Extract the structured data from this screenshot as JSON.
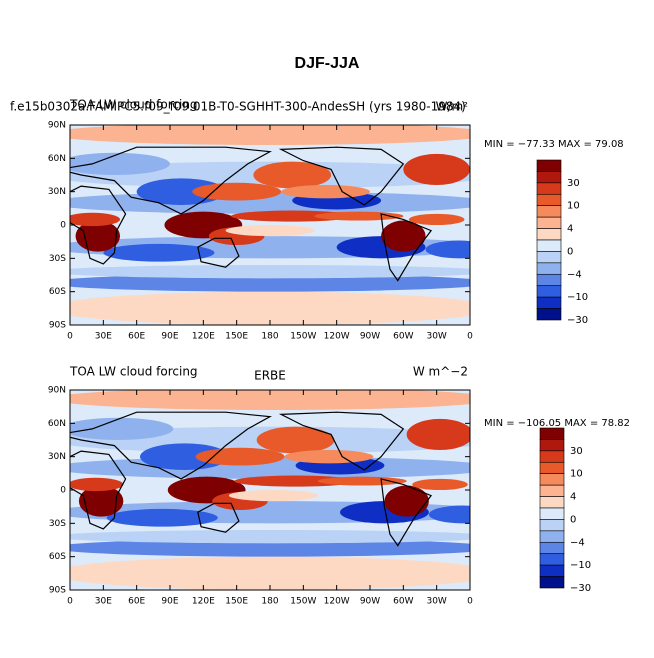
{
  "title": "DJF-JJA",
  "panels": [
    {
      "case_title": "f.e15b0302a.FAMIPC5.f09_f09.01B-T0-SGHHT-300-AndesSH (yrs 1980-1984)",
      "variable": "TOA LW cloud forcing",
      "units": "W/m²",
      "stats": "MIN = −77.33 MAX =  79.08",
      "colorbar_labels": [
        "30",
        "10",
        "4",
        "0",
        "−4",
        "−10",
        "−30"
      ]
    },
    {
      "case_title": "ERBE",
      "variable": "TOA LW cloud forcing",
      "units": "W m^−2",
      "stats": "MIN = −106.05 MAX =  78.82",
      "colorbar_labels": [
        "30",
        "10",
        "4",
        "0",
        "−4",
        "−10",
        "−30"
      ]
    }
  ],
  "lat_labels": [
    "90N",
    "60N",
    "30N",
    "0",
    "30S",
    "60S",
    "90S"
  ],
  "lon_labels": [
    "0",
    "30E",
    "60E",
    "90E",
    "120E",
    "150E",
    "180",
    "150W",
    "120W",
    "90W",
    "60W",
    "30W",
    "0"
  ]
}
